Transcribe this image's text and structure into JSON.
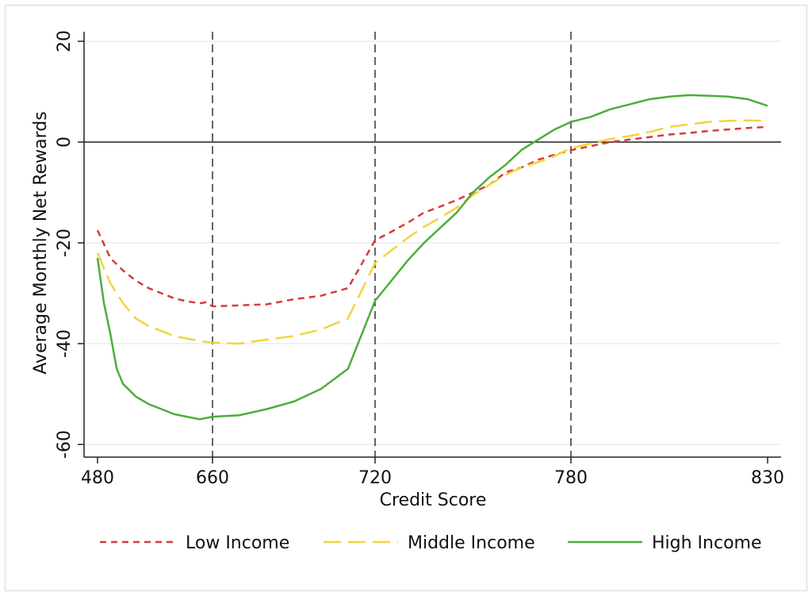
{
  "chart_data": {
    "type": "line",
    "xlabel": "Credit Score",
    "ylabel": "Average Monthly Net Rewards",
    "x_ticks": [
      "480",
      "660",
      "720",
      "780",
      "830"
    ],
    "y_ticks": [
      "-60",
      "-40",
      "-20",
      "0",
      "20"
    ],
    "ylim": [
      -62,
      22
    ],
    "x_segments": {
      "ticks": [
        480,
        660,
        720,
        780,
        830
      ],
      "note_scale": "piecewise"
    },
    "reference_lines": {
      "vertical_dashed_at": [
        660,
        720,
        780
      ],
      "horizontal_solid_at": 0
    },
    "grid": "horizontal",
    "legend_position": "bottom",
    "colors": {
      "low": "#d63b3b",
      "middle": "#f2d43e",
      "high": "#4cae3a",
      "grid": "#e6e6e6",
      "axis": "#222222"
    },
    "series": [
      {
        "name": "Low Income",
        "style": "short-dash",
        "color": "#d63b3b",
        "points": [
          [
            480,
            -17.5
          ],
          [
            500,
            -23
          ],
          [
            520,
            -25.5
          ],
          [
            540,
            -27.5
          ],
          [
            560,
            -29
          ],
          [
            580,
            -30
          ],
          [
            600,
            -31
          ],
          [
            620,
            -31.6
          ],
          [
            640,
            -32
          ],
          [
            650,
            -31.8
          ],
          [
            660,
            -32.6
          ],
          [
            680,
            -32.2
          ],
          [
            690,
            -31.2
          ],
          [
            700,
            -30.5
          ],
          [
            710,
            -29
          ],
          [
            720,
            -19.5
          ],
          [
            725,
            -17.8
          ],
          [
            730,
            -16
          ],
          [
            735,
            -14
          ],
          [
            740,
            -12.8
          ],
          [
            745,
            -11.5
          ],
          [
            750,
            -10
          ],
          [
            755,
            -8.5
          ],
          [
            760,
            -6
          ],
          [
            765,
            -5
          ],
          [
            770,
            -3.5
          ],
          [
            775,
            -2.5
          ],
          [
            780,
            -1.6
          ],
          [
            785,
            -0.8
          ],
          [
            790,
            0
          ],
          [
            795,
            0.5
          ],
          [
            800,
            1
          ],
          [
            805,
            1.5
          ],
          [
            810,
            1.8
          ],
          [
            815,
            2.2
          ],
          [
            820,
            2.5
          ],
          [
            825,
            2.8
          ],
          [
            830,
            3
          ]
        ]
      },
      {
        "name": "Middle Income",
        "style": "long-dash",
        "color": "#f2d43e",
        "points": [
          [
            480,
            -22
          ],
          [
            500,
            -28
          ],
          [
            520,
            -32
          ],
          [
            540,
            -35
          ],
          [
            560,
            -36.5
          ],
          [
            580,
            -37.5
          ],
          [
            600,
            -38.5
          ],
          [
            620,
            -39
          ],
          [
            640,
            -39.5
          ],
          [
            660,
            -39.8
          ],
          [
            670,
            -40
          ],
          [
            680,
            -39.2
          ],
          [
            690,
            -38.5
          ],
          [
            700,
            -37.2
          ],
          [
            710,
            -35
          ],
          [
            720,
            -24
          ],
          [
            725,
            -21.5
          ],
          [
            730,
            -19
          ],
          [
            735,
            -16.8
          ],
          [
            740,
            -15
          ],
          [
            745,
            -13
          ],
          [
            750,
            -10.5
          ],
          [
            755,
            -8.5
          ],
          [
            760,
            -6.5
          ],
          [
            765,
            -5
          ],
          [
            770,
            -4
          ],
          [
            775,
            -2.8
          ],
          [
            780,
            -1.2
          ],
          [
            785,
            -0.3
          ],
          [
            790,
            0.6
          ],
          [
            795,
            1.2
          ],
          [
            800,
            2
          ],
          [
            805,
            3
          ],
          [
            810,
            3.5
          ],
          [
            815,
            4
          ],
          [
            820,
            4.2
          ],
          [
            825,
            4.3
          ],
          [
            830,
            4.2
          ]
        ]
      },
      {
        "name": "High Income",
        "style": "solid",
        "color": "#4cae3a",
        "points": [
          [
            480,
            -23
          ],
          [
            490,
            -32
          ],
          [
            500,
            -38
          ],
          [
            510,
            -45
          ],
          [
            520,
            -48
          ],
          [
            540,
            -50.5
          ],
          [
            560,
            -52
          ],
          [
            580,
            -53
          ],
          [
            600,
            -54
          ],
          [
            620,
            -54.5
          ],
          [
            640,
            -55
          ],
          [
            660,
            -54.5
          ],
          [
            670,
            -54.2
          ],
          [
            680,
            -53
          ],
          [
            690,
            -51.5
          ],
          [
            700,
            -49
          ],
          [
            710,
            -45
          ],
          [
            720,
            -31.5
          ],
          [
            725,
            -27.5
          ],
          [
            730,
            -23.5
          ],
          [
            735,
            -20
          ],
          [
            740,
            -17
          ],
          [
            745,
            -14
          ],
          [
            750,
            -10
          ],
          [
            755,
            -7
          ],
          [
            760,
            -4.5
          ],
          [
            765,
            -1.5
          ],
          [
            770,
            0.5
          ],
          [
            775,
            2.5
          ],
          [
            780,
            4
          ],
          [
            785,
            5
          ],
          [
            790,
            6.5
          ],
          [
            795,
            7.5
          ],
          [
            800,
            8.5
          ],
          [
            805,
            9
          ],
          [
            810,
            9.3
          ],
          [
            815,
            9.2
          ],
          [
            820,
            9
          ],
          [
            825,
            8.5
          ],
          [
            830,
            7.2
          ]
        ]
      }
    ]
  }
}
